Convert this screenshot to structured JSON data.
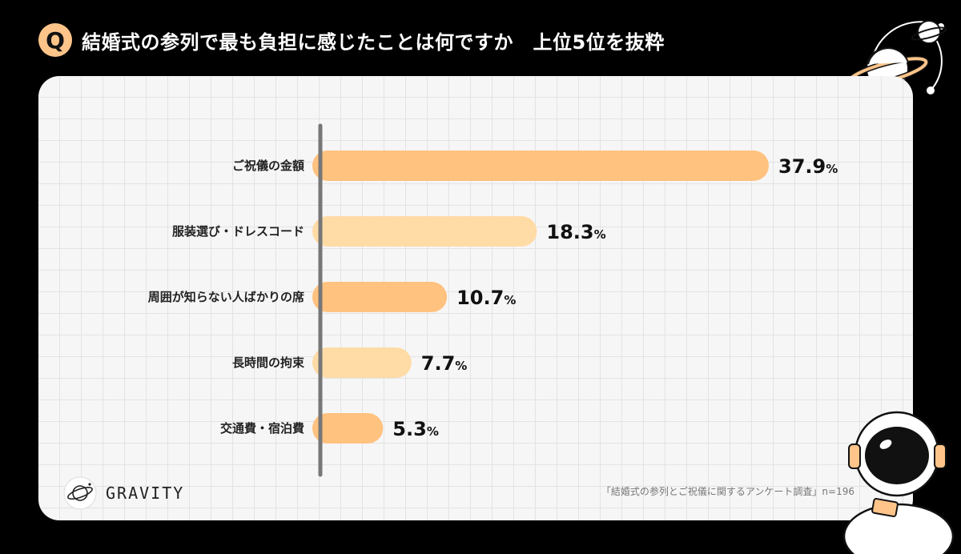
{
  "header": {
    "q_label": "Q",
    "title": "結婚式の参列で最も負担に感じたことは何ですか　上位5位を抜粋"
  },
  "chart_data": {
    "type": "bar",
    "orientation": "horizontal",
    "categories": [
      "ご祝儀の金額",
      "服装選び・ドレスコード",
      "周囲が知らない人ばかりの席",
      "長時間の拘束",
      "交通費・宿泊費"
    ],
    "values": [
      37.9,
      18.3,
      10.7,
      7.7,
      5.3
    ],
    "value_suffix": "%",
    "bar_colors": [
      "#ffc27f",
      "#ffdba6",
      "#ffc27f",
      "#ffdba6",
      "#ffc27f"
    ],
    "xlim": [
      0,
      37.9
    ],
    "grid": true,
    "axis_color": "#777777"
  },
  "footer": {
    "logo_text": "GRAVITY",
    "source": "「結婚式の参列とご祝儀に関するアンケート調査」n=196"
  },
  "colors": {
    "background": "#000000",
    "panel": "#f6f6f6",
    "accent": "#ffc489"
  },
  "icons": {
    "planet_top": "planet-icon",
    "astronaut": "astronaut-icon",
    "logo": "planet-logo-icon"
  }
}
